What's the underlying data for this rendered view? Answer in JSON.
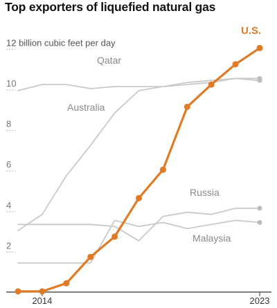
{
  "chart_data": {
    "type": "line",
    "title": "Top exporters of liquefied natural gas",
    "ylabel": "billion cubic feet per day",
    "ylim": [
      0,
      12
    ],
    "y_ticks": [
      {
        "value": 2,
        "label": "2"
      },
      {
        "value": 4,
        "label": "4"
      },
      {
        "value": 6,
        "label": "6"
      },
      {
        "value": 8,
        "label": "8"
      },
      {
        "value": 10,
        "label": "10"
      },
      {
        "value": 12,
        "label": "12 billion cubic feet per day"
      }
    ],
    "x": [
      2014,
      2015,
      2016,
      2017,
      2018,
      2019,
      2020,
      2021,
      2022,
      2023
    ],
    "x_tick_labels": [
      {
        "value": 2014,
        "label": "2014"
      },
      {
        "value": 2023,
        "label": "2023"
      }
    ],
    "grid": false,
    "legend": "direct labels",
    "series": [
      {
        "name": "Qatar",
        "highlight": false,
        "color": "#c9c9c9",
        "x": [
          2013,
          2014,
          2015,
          2016,
          2017,
          2018,
          2019,
          2020,
          2021,
          2022,
          2023
        ],
        "values": [
          9.9,
          10.2,
          10.2,
          10.0,
          10.1,
          10.1,
          10.1,
          10.2,
          10.3,
          10.5,
          10.4
        ]
      },
      {
        "name": "Australia",
        "highlight": false,
        "color": "#c9c9c9",
        "x": [
          2013,
          2014,
          2015,
          2016,
          2017,
          2018,
          2019,
          2020,
          2021,
          2022,
          2023
        ],
        "values": [
          3.0,
          3.8,
          5.7,
          7.2,
          8.8,
          9.9,
          10.1,
          10.3,
          10.4,
          10.5,
          10.5
        ]
      },
      {
        "name": "Russia",
        "highlight": false,
        "color": "#c9c9c9",
        "x": [
          2013,
          2014,
          2015,
          2016,
          2017,
          2018,
          2019,
          2020,
          2021,
          2022,
          2023
        ],
        "values": [
          3.3,
          3.3,
          3.3,
          3.3,
          3.2,
          2.5,
          3.7,
          3.9,
          3.8,
          4.1,
          4.1
        ]
      },
      {
        "name": "Malaysia",
        "highlight": false,
        "color": "#c9c9c9",
        "x": [
          2013,
          2014,
          2015,
          2016,
          2017,
          2018,
          2019,
          2020,
          2021,
          2022,
          2023
        ],
        "values": [
          1.4,
          1.4,
          1.4,
          1.4,
          3.5,
          3.2,
          3.4,
          3.1,
          3.3,
          3.5,
          3.4
        ]
      },
      {
        "name": "U.S.",
        "highlight": true,
        "color": "#e07a24",
        "x": [
          2013,
          2014,
          2015,
          2016,
          2017,
          2018,
          2019,
          2020,
          2021,
          2022,
          2023
        ],
        "values": [
          0.0,
          0.0,
          0.4,
          1.7,
          2.7,
          4.6,
          6.0,
          9.1,
          10.2,
          11.2,
          12.0
        ]
      }
    ]
  },
  "colors": {
    "highlight": "#e07a24",
    "muted": "#c9c9c9",
    "axis": "#333333"
  }
}
